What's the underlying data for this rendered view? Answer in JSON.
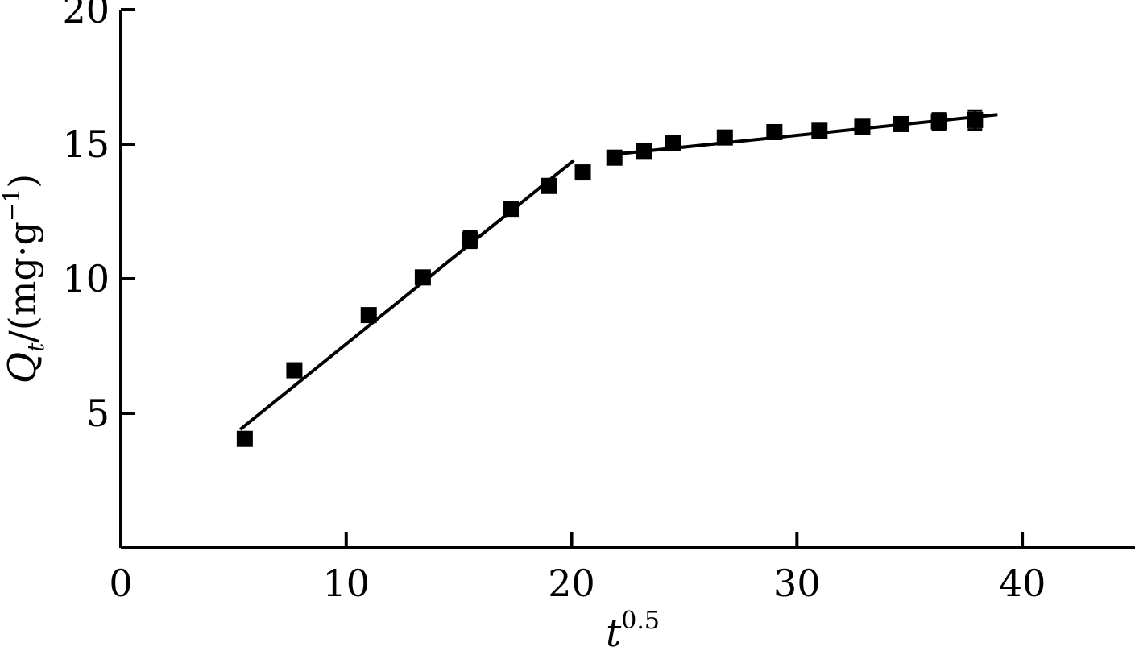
{
  "chart_data": {
    "type": "scatter",
    "title": "",
    "xlabel": {
      "base": "t",
      "exponent": "0.5"
    },
    "ylabel": {
      "symbol": "Q",
      "subscript": "t",
      "unit_open": "/(mg",
      "unit_dot": "·",
      "unit_base": "g",
      "unit_exponent": "−1",
      "unit_close": ")"
    },
    "xlim": [
      0,
      45
    ],
    "ylim": [
      0,
      20
    ],
    "xticks": [
      0,
      10,
      20,
      30,
      40
    ],
    "xtick_labels": [
      "0",
      "10",
      "20",
      "30",
      "40"
    ],
    "yticks": [
      5,
      10,
      15,
      20
    ],
    "ytick_labels": [
      "5",
      "10",
      "15",
      "20"
    ],
    "grid": false,
    "legend": "none",
    "marker_color": "#000000",
    "series": [
      {
        "x": [
          5.5,
          7.7,
          11.0,
          13.4,
          15.5,
          17.3,
          19.0,
          20.5,
          21.9,
          23.2,
          24.5,
          26.8,
          29.0,
          31.0,
          32.9,
          34.6,
          36.3,
          37.9
        ],
        "y": [
          4.05,
          6.6,
          8.65,
          10.05,
          11.45,
          12.6,
          13.45,
          13.95,
          14.5,
          14.75,
          15.05,
          15.25,
          15.45,
          15.5,
          15.65,
          15.75,
          15.85,
          15.9
        ],
        "err": [
          0.2,
          0.1,
          0.1,
          0.2,
          0.3,
          0.15,
          0.1,
          0.1,
          0.2,
          0.2,
          0.15,
          0.15,
          0.15,
          0.2,
          0.2,
          0.2,
          0.3,
          0.35
        ]
      }
    ],
    "fit_lines": [
      {
        "x": [
          5.3,
          20.1
        ],
        "y": [
          4.4,
          14.4
        ]
      },
      {
        "x": [
          21.6,
          38.9
        ],
        "y": [
          14.6,
          16.1
        ]
      }
    ]
  }
}
